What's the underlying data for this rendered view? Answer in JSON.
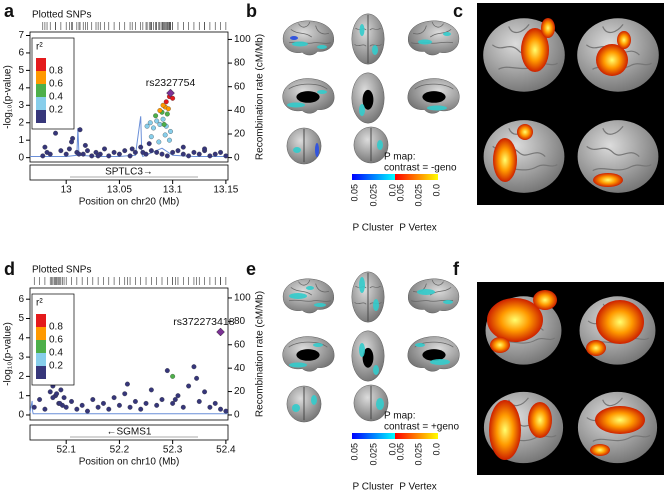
{
  "chart_data": [
    {
      "type": "scatter",
      "panel": "a",
      "rug_label": "Plotted SNPs",
      "ylabel": "-log₁₀(p-value)",
      "y2label": "Recombination rate (cM/Mb)",
      "xlabel": "Position on chr20 (Mb)",
      "gene": "SPTLC3→",
      "annotation": "rs2327754",
      "xlim": [
        12.966,
        13.152
      ],
      "xticks": [
        13,
        13.05,
        13.1,
        13.15
      ],
      "ylim": [
        -0.25,
        7.2
      ],
      "yticks": [
        0,
        1,
        2,
        3,
        4,
        5,
        6,
        7
      ],
      "y2lim": [
        -3.7,
        106.3
      ],
      "y2ticks": [
        0,
        20,
        40,
        60,
        80,
        100
      ],
      "legend": {
        "title": "r²",
        "colors": [
          "#e41a1c",
          "#ff9900",
          "#4daf4a",
          "#87ceeb",
          "#36367a"
        ],
        "ticks": [
          0.8,
          0.6,
          0.4,
          0.2
        ]
      },
      "series": [
        {
          "type": "line",
          "axis": "y2",
          "color": "#6a8fd8",
          "x": [
            12.966,
            13.0,
            13.01,
            13.011,
            13.012,
            13.03,
            13.05,
            13.065,
            13.07,
            13.071,
            13.072,
            13.09,
            13.1,
            13.12,
            13.152
          ],
          "values": [
            1,
            1,
            2,
            25,
            2,
            1,
            1,
            2,
            35,
            3,
            1,
            8,
            2,
            1,
            1
          ]
        },
        {
          "color": "#36367a",
          "x": [
            12.978,
            12.982,
            12.985,
            12.99,
            12.995,
            13.0,
            13.003,
            13.006,
            13.01,
            13.013,
            13.016,
            13.02,
            13.024,
            13.028,
            13.032,
            13.036,
            13.04,
            13.045,
            13.05,
            13.055,
            13.06,
            13.065,
            13.07,
            13.075,
            13.08,
            13.085,
            13.09,
            13.095,
            13.1,
            13.105,
            13.11,
            13.115,
            13.12,
            13.125,
            13.13,
            13.135,
            13.14,
            13.145,
            13.15,
            12.98,
            12.99,
            13.005,
            13.012,
            13.018,
            13.03,
            13.062,
            13.072,
            13.078,
            13.11,
            13.13
          ],
          "values": [
            0.1,
            0.3,
            0.2,
            1.4,
            0.4,
            0.2,
            0.5,
            1.1,
            0.3,
            1.6,
            0.2,
            0.4,
            0.1,
            0.3,
            0.2,
            0.5,
            0.1,
            0.3,
            0.2,
            0.4,
            0.1,
            0.3,
            0.6,
            0.2,
            0.4,
            0.3,
            0.2,
            0.1,
            0.3,
            0.4,
            0.2,
            0.1,
            0.3,
            0.2,
            0.4,
            0.1,
            0.2,
            0.3,
            0.1,
            0.6,
            2.1,
            0.9,
            0.2,
            0.7,
            0.1,
            0.5,
            0.3,
            0.8,
            0.6,
            0.5
          ]
        },
        {
          "color": "#87ceeb",
          "x": [
            13.076,
            13.079,
            13.082,
            13.085,
            13.088,
            13.091,
            13.094,
            13.097,
            13.08,
            13.087,
            13.093,
            13.098
          ],
          "values": [
            1.8,
            2.0,
            1.7,
            2.1,
            1.9,
            2.2,
            1.8,
            1.0,
            1.2,
            0.9,
            1.3,
            1.5
          ]
        },
        {
          "color": "#4daf4a",
          "x": [
            13.084,
            13.09,
            13.095,
            13.092
          ],
          "values": [
            2.4,
            2.6,
            2.5,
            1.9
          ]
        },
        {
          "color": "#ff9900",
          "x": [
            13.088,
            13.093,
            13.096,
            13.091
          ],
          "values": [
            2.7,
            2.9,
            2.8,
            3.0
          ]
        },
        {
          "color": "#e41a1c",
          "x": [
            13.094,
            13.097,
            13.1
          ],
          "values": [
            3.2,
            3.5,
            3.4
          ]
        },
        {
          "color": "#7b3294",
          "shape": "diamond",
          "x": [
            13.098
          ],
          "values": [
            3.7
          ]
        }
      ]
    },
    {
      "type": "scatter",
      "panel": "d",
      "rug_label": "Plotted SNPs",
      "ylabel": "-log₁₀(p-value)",
      "y2label": "Recombination rate (cM/Mb)",
      "xlabel": "Position on chr10 (Mb)",
      "gene": "←SGMS1",
      "annotation": "rs372273418",
      "xlim": [
        52.032,
        52.404
      ],
      "xticks": [
        52.1,
        52.2,
        52.3,
        52.4
      ],
      "ylim": [
        -0.26,
        6.58
      ],
      "yticks": [
        0,
        1,
        2,
        3,
        4,
        5,
        6
      ],
      "y2lim": [
        -4.3,
        108.5
      ],
      "y2ticks": [
        0,
        20,
        40,
        60,
        80,
        100
      ],
      "legend": {
        "title": "r²",
        "colors": [
          "#e41a1c",
          "#ff9900",
          "#4daf4a",
          "#87ceeb",
          "#36367a"
        ],
        "ticks": [
          0.8,
          0.6,
          0.4,
          0.2
        ]
      },
      "series": [
        {
          "type": "line",
          "axis": "y2",
          "color": "#6a8fd8",
          "x": [
            52.032,
            52.036,
            52.037,
            52.038,
            52.1,
            52.2,
            52.3,
            52.404
          ],
          "values": [
            2,
            12,
            3,
            1,
            1,
            1,
            1,
            1
          ]
        },
        {
          "color": "#36367a",
          "x": [
            52.04,
            52.05,
            52.06,
            52.07,
            52.072,
            52.075,
            52.078,
            52.08,
            52.083,
            52.086,
            52.09,
            52.093,
            52.096,
            52.1,
            52.11,
            52.12,
            52.13,
            52.14,
            52.15,
            52.16,
            52.17,
            52.18,
            52.19,
            52.2,
            52.21,
            52.22,
            52.23,
            52.24,
            52.25,
            52.26,
            52.27,
            52.28,
            52.29,
            52.3,
            52.31,
            52.32,
            52.33,
            52.34,
            52.35,
            52.36,
            52.37,
            52.38,
            52.39,
            52.4,
            52.075,
            52.082,
            52.088,
            52.215,
            52.305,
            52.345
          ],
          "values": [
            0.4,
            0.8,
            0.3,
            1.2,
            1.9,
            1.5,
            2.2,
            1.0,
            1.7,
            0.6,
            1.3,
            0.5,
            0.9,
            0.4,
            0.7,
            0.3,
            0.5,
            0.2,
            0.8,
            0.4,
            0.6,
            0.3,
            0.9,
            0.5,
            1.1,
            0.4,
            0.7,
            0.3,
            0.6,
            1.3,
            0.5,
            0.8,
            2.3,
            0.6,
            1.0,
            0.4,
            1.5,
            2.5,
            0.7,
            1.2,
            0.4,
            0.6,
            0.3,
            0.2,
            0.9,
            1.1,
            0.6,
            1.6,
            0.8,
            1.9
          ]
        },
        {
          "color": "#4daf4a",
          "x": [
            52.3
          ],
          "values": [
            2.0
          ]
        },
        {
          "color": "#7b3294",
          "shape": "diamond",
          "x": [
            52.39
          ],
          "values": [
            4.3
          ]
        }
      ]
    }
  ],
  "brain_panels": [
    {
      "label": "b",
      "map_title": "P map:",
      "contrast": "contrast = -geno",
      "colorbar_ticks": [
        0.05,
        0.025,
        {
          "value": 0,
          "label": "0.0"
        },
        0.05,
        0.025,
        {
          "value": 0,
          "label": "0.0"
        }
      ],
      "colorbar_labels": [
        "P Cluster",
        "P Vertex"
      ]
    },
    {
      "label": "c"
    },
    {
      "label": "e",
      "map_title": "P map:",
      "contrast": "contrast = +geno",
      "colorbar_ticks": [
        0.05,
        0.025,
        {
          "value": 0,
          "label": "0.0"
        },
        0.05,
        0.025,
        {
          "value": 0,
          "label": "0.0"
        }
      ],
      "colorbar_labels": [
        "P Cluster",
        "P Vertex"
      ]
    },
    {
      "label": "f"
    }
  ]
}
